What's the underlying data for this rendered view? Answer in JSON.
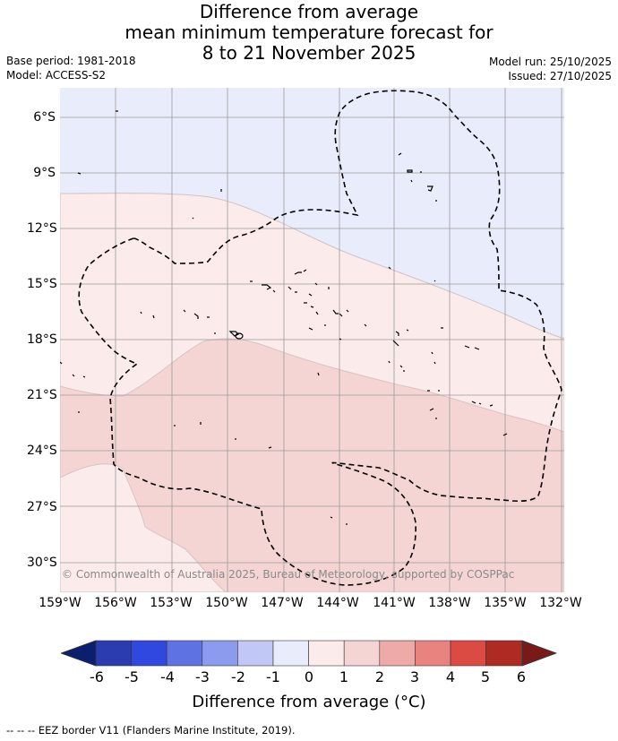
{
  "title": {
    "line1": "Difference from average",
    "line2": "mean minimum temperature forecast for",
    "line3": "8 to 21 November 2025"
  },
  "meta": {
    "base_period": "Base period: 1981-2018",
    "model": "Model: ACCESS-S2",
    "model_run": "Model run: 25/10/2025",
    "issued": "Issued: 27/10/2025"
  },
  "map": {
    "lat_labels": [
      "6°S",
      "9°S",
      "12°S",
      "15°S",
      "18°S",
      "21°S",
      "24°S",
      "27°S",
      "30°S"
    ],
    "lon_labels": [
      "159°W",
      "156°W",
      "153°W",
      "150°W",
      "147°W",
      "144°W",
      "141°W",
      "138°W",
      "135°W",
      "132°W"
    ],
    "copyright": "© Commonwealth of Australia 2025, Bureau of Meteorology, supported by COSPPac",
    "colors": {
      "zone_minus1_0": "#e9ecfb",
      "zone_0_1": "#fbebea",
      "zone_1_2": "#f4d5d4",
      "grid": "#9a9a9a",
      "eez": "#000000"
    }
  },
  "colorbar": {
    "ticks": [
      "-6",
      "-5",
      "-4",
      "-3",
      "-2",
      "-1",
      "0",
      "1",
      "2",
      "3",
      "4",
      "5",
      "6"
    ],
    "colors": [
      "#0a1f6e",
      "#2a3caf",
      "#3048e0",
      "#5f72e4",
      "#8c9bee",
      "#c1c8f5",
      "#e9ecfb",
      "#fbebea",
      "#f4d5d4",
      "#eeaaa8",
      "#e8837f",
      "#dc4a44",
      "#b02a24",
      "#7a1a18"
    ],
    "label": "Difference from average (°C)"
  },
  "legend": {
    "eez": "--  --  -- EEZ border V11 (Flanders Marine Institute, 2019)."
  }
}
